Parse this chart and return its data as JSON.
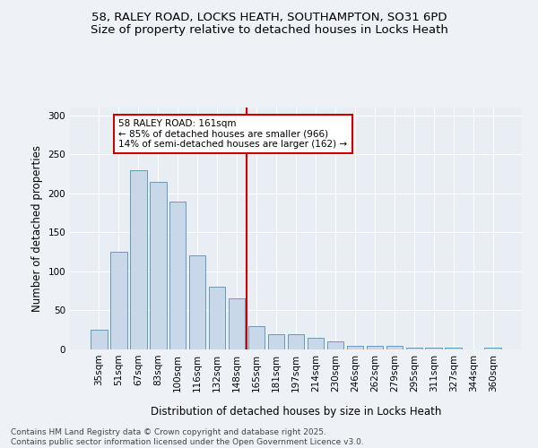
{
  "title_line1": "58, RALEY ROAD, LOCKS HEATH, SOUTHAMPTON, SO31 6PD",
  "title_line2": "Size of property relative to detached houses in Locks Heath",
  "xlabel": "Distribution of detached houses by size in Locks Heath",
  "ylabel": "Number of detached properties",
  "categories": [
    "35sqm",
    "51sqm",
    "67sqm",
    "83sqm",
    "100sqm",
    "116sqm",
    "132sqm",
    "148sqm",
    "165sqm",
    "181sqm",
    "197sqm",
    "214sqm",
    "230sqm",
    "246sqm",
    "262sqm",
    "279sqm",
    "295sqm",
    "311sqm",
    "327sqm",
    "344sqm",
    "360sqm"
  ],
  "values": [
    25,
    125,
    230,
    215,
    190,
    120,
    80,
    65,
    30,
    20,
    20,
    15,
    10,
    5,
    5,
    5,
    2,
    2,
    2,
    0,
    2
  ],
  "bar_color": "#c8d8e8",
  "bar_edge_color": "#6699bb",
  "vline_index": 8,
  "vline_color": "#cc0000",
  "annotation_text": "58 RALEY ROAD: 161sqm\n← 85% of detached houses are smaller (966)\n14% of semi-detached houses are larger (162) →",
  "annotation_box_color": "#ffffff",
  "annotation_box_edge_color": "#cc0000",
  "ylim": [
    0,
    310
  ],
  "background_color": "#eef2f7",
  "plot_background": "#e8eef4",
  "footer_text": "Contains HM Land Registry data © Crown copyright and database right 2025.\nContains public sector information licensed under the Open Government Licence v3.0.",
  "title_fontsize": 9.5,
  "axis_label_fontsize": 8.5,
  "tick_fontsize": 7.5,
  "annotation_fontsize": 7.5,
  "footer_fontsize": 6.5,
  "yticks": [
    0,
    50,
    100,
    150,
    200,
    250,
    300
  ]
}
